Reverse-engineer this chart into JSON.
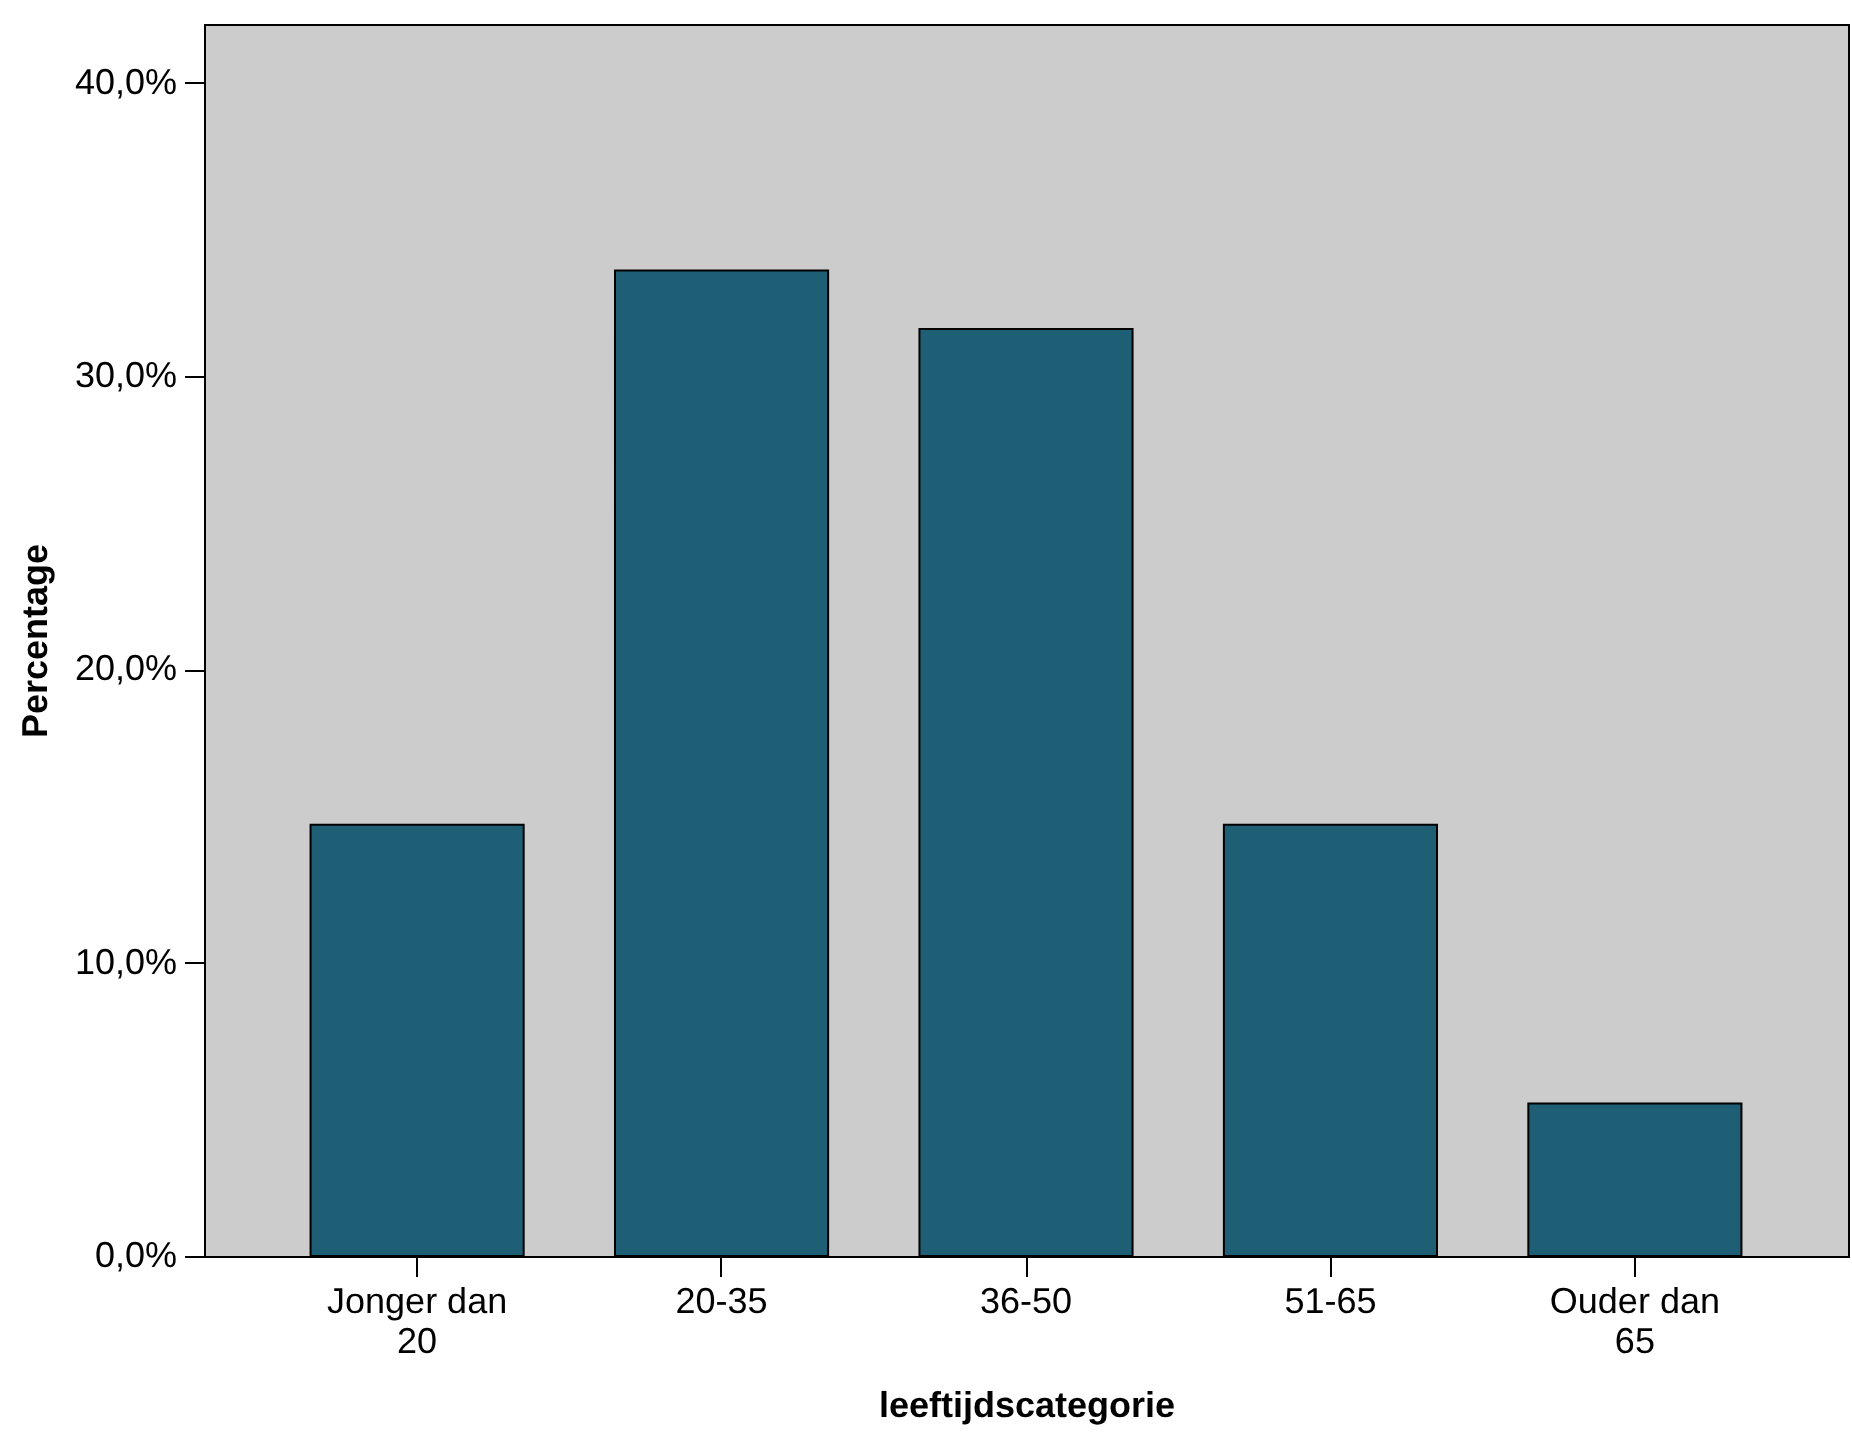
{
  "chart_data": {
    "type": "bar",
    "xlabel": "leeftijdscategorie",
    "ylabel": "Percentage",
    "categories": [
      "Jonger dan 20",
      "20-35",
      "36-50",
      "51-65",
      "Ouder dan 65"
    ],
    "values": [
      14.7,
      33.6,
      31.6,
      14.7,
      5.2
    ],
    "color": "#1f5f75",
    "ylim": [
      0,
      42
    ],
    "yticks": [
      {
        "value": 0,
        "label": "0,0%"
      },
      {
        "value": 10,
        "label": "10,0%"
      },
      {
        "value": 20,
        "label": "20,0%"
      },
      {
        "value": 30,
        "label": "30,0%"
      },
      {
        "value": 40,
        "label": "40,0%"
      }
    ],
    "grid": false,
    "legend": false
  }
}
